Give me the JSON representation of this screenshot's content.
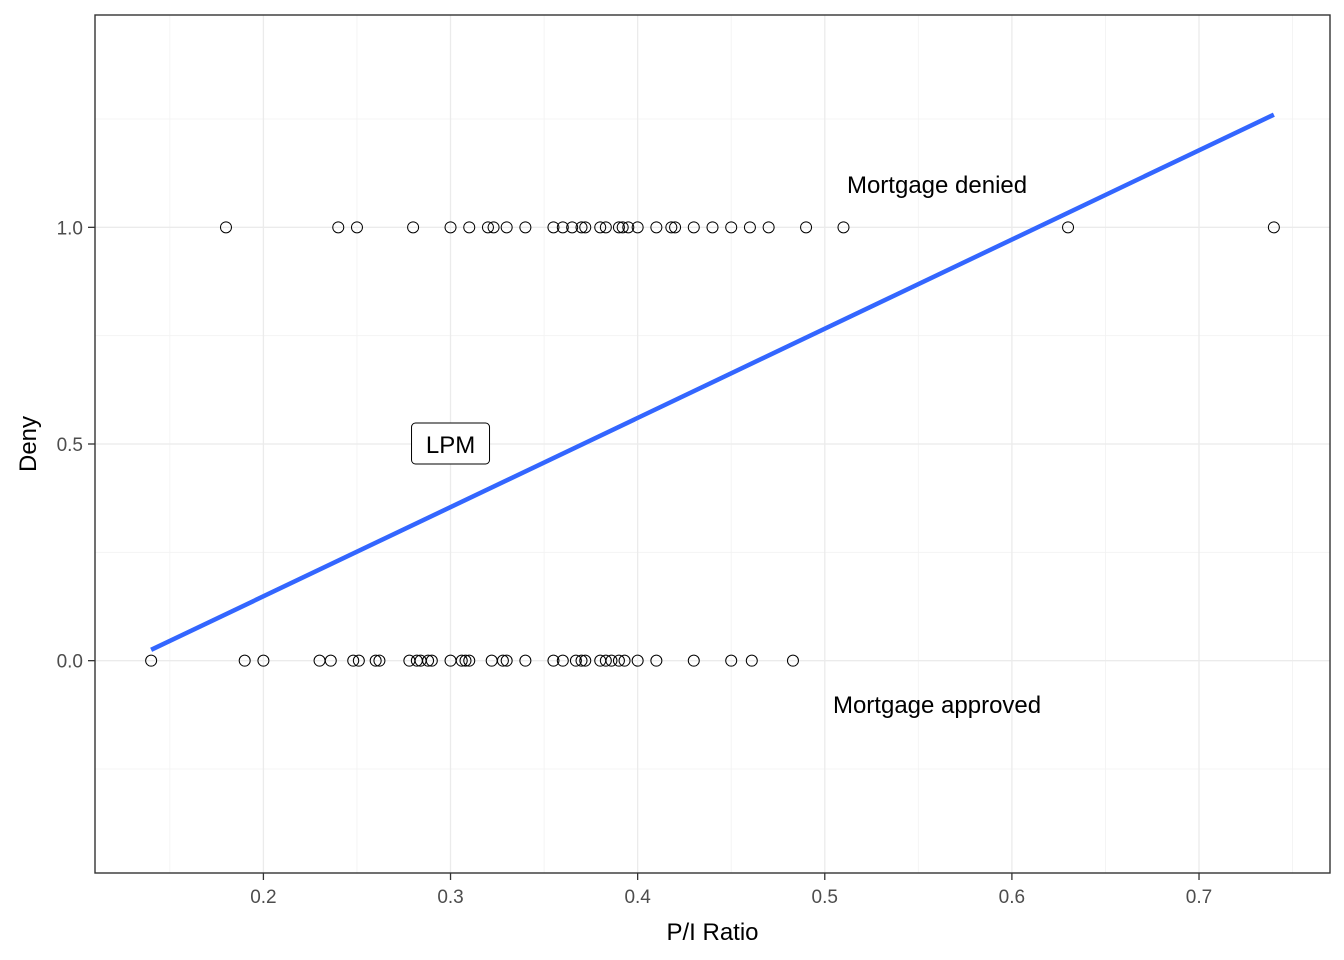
{
  "chart_data": {
    "type": "scatter",
    "xlabel": "P/I Ratio",
    "ylabel": "Deny",
    "xlim": [
      0.11,
      0.77
    ],
    "ylim": [
      -0.49,
      1.49
    ],
    "x_ticks": [
      0.2,
      0.3,
      0.4,
      0.5,
      0.6,
      0.7
    ],
    "x_tick_labels": [
      "0.2",
      "0.3",
      "0.4",
      "0.5",
      "0.6",
      "0.7"
    ],
    "y_ticks": [
      0.0,
      0.5,
      1.0
    ],
    "y_tick_labels": [
      "0.0",
      "0.5",
      "1.0"
    ],
    "grid": true,
    "series": [
      {
        "type": "scatter",
        "marker": "open-circle",
        "color": "#000000",
        "points_deny_1": [
          0.18,
          0.24,
          0.25,
          0.28,
          0.3,
          0.31,
          0.32,
          0.323,
          0.33,
          0.34,
          0.355,
          0.36,
          0.365,
          0.37,
          0.372,
          0.38,
          0.383,
          0.39,
          0.392,
          0.395,
          0.4,
          0.41,
          0.418,
          0.42,
          0.43,
          0.44,
          0.45,
          0.46,
          0.47,
          0.49,
          0.51,
          0.63,
          0.74
        ],
        "points_deny_0": [
          0.14,
          0.19,
          0.2,
          0.23,
          0.236,
          0.248,
          0.251,
          0.26,
          0.262,
          0.278,
          0.282,
          0.284,
          0.288,
          0.29,
          0.3,
          0.306,
          0.308,
          0.31,
          0.322,
          0.328,
          0.33,
          0.34,
          0.355,
          0.36,
          0.367,
          0.37,
          0.372,
          0.38,
          0.383,
          0.386,
          0.39,
          0.393,
          0.4,
          0.41,
          0.43,
          0.45,
          0.461,
          0.483
        ]
      },
      {
        "type": "line",
        "color": "#3366ff",
        "x_start": 0.14,
        "y_start": 0.025,
        "x_end": 0.74,
        "y_end": 1.26
      }
    ],
    "annotations": [
      {
        "text": "Mortgage denied",
        "x": 0.56,
        "y": 1.1,
        "boxed": false
      },
      {
        "text": "Mortgage approved",
        "x": 0.56,
        "y": -0.1,
        "boxed": false
      },
      {
        "text": "LPM",
        "x": 0.3,
        "y": 0.5,
        "boxed": true
      }
    ]
  }
}
